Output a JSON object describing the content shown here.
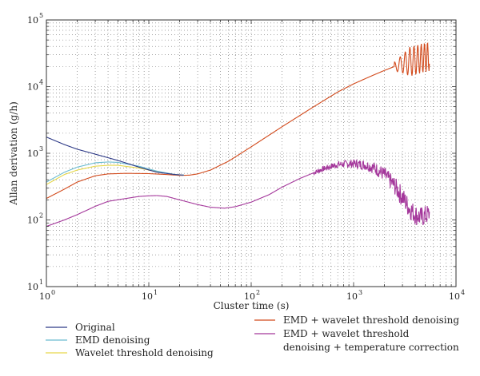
{
  "chart_data": {
    "type": "line",
    "title": "",
    "xlabel": "Cluster time (s)",
    "ylabel": "Allan derivation (g/h)",
    "x_scale": "log",
    "y_scale": "log",
    "xlim": [
      1,
      10000
    ],
    "ylim": [
      10,
      100000
    ],
    "grid": true,
    "legend_position": "bottom",
    "x_ticks": [
      {
        "value": 1,
        "base": "10",
        "exp": "0"
      },
      {
        "value": 10,
        "base": "10",
        "exp": "1"
      },
      {
        "value": 100,
        "base": "10",
        "exp": "2"
      },
      {
        "value": 1000,
        "base": "10",
        "exp": "3"
      },
      {
        "value": 10000,
        "base": "10",
        "exp": "4"
      }
    ],
    "y_ticks": [
      {
        "value": 10,
        "base": "10",
        "exp": "1"
      },
      {
        "value": 100,
        "base": "10",
        "exp": "2"
      },
      {
        "value": 1000,
        "base": "10",
        "exp": "3"
      },
      {
        "value": 10000,
        "base": "10",
        "exp": "4"
      },
      {
        "value": 100000,
        "base": "10",
        "exp": "5"
      }
    ],
    "series": [
      {
        "name": "Original",
        "color": "#2e3a87",
        "x": [
          1,
          1.5,
          2,
          3,
          5,
          8,
          12,
          18,
          22
        ],
        "y": [
          1750,
          1350,
          1150,
          970,
          780,
          620,
          520,
          480,
          470
        ]
      },
      {
        "name": "EMD denoising",
        "color": "#6bbcd1",
        "x": [
          1,
          1.5,
          2,
          3,
          4,
          5,
          8,
          12,
          18,
          22
        ],
        "y": [
          370,
          520,
          620,
          720,
          740,
          730,
          640,
          540,
          480,
          470
        ]
      },
      {
        "name": "Wavelet threshold denoising",
        "color": "#e6d84a",
        "x": [
          1,
          1.5,
          2,
          3,
          4,
          5,
          8,
          12,
          18,
          22
        ],
        "y": [
          340,
          480,
          560,
          640,
          660,
          660,
          600,
          530,
          480,
          470
        ]
      },
      {
        "name": "EMD + wavelet threshold denoising",
        "color": "#d24a1c",
        "x": [
          1,
          1.5,
          2,
          3,
          4,
          6,
          10,
          15,
          20,
          25,
          30,
          40,
          60,
          100,
          200,
          400,
          700,
          1000,
          1500,
          2000,
          2500,
          3000,
          4000,
          5000,
          5500
        ],
        "y": [
          210,
          290,
          370,
          460,
          490,
          500,
          495,
          480,
          465,
          470,
          490,
          560,
          760,
          1250,
          2500,
          4900,
          8300,
          11000,
          14500,
          17500,
          20000,
          22000,
          25000,
          27500,
          28500
        ],
        "oscillation": {
          "from": 2500,
          "to": 5600,
          "amplitude": 0.22
        }
      },
      {
        "name": "EMD + wavelet threshold denoising + temperature correction",
        "color": "#a4379b",
        "x": [
          1,
          1.5,
          2,
          3,
          4,
          6,
          8,
          10,
          12,
          15,
          20,
          30,
          40,
          55,
          70,
          100,
          150,
          200,
          300,
          500,
          700,
          1000,
          1300,
          1600,
          2000,
          2500,
          3000,
          3500,
          4000,
          4500,
          5000,
          5500
        ],
        "y": [
          80,
          100,
          120,
          160,
          190,
          210,
          225,
          230,
          232,
          225,
          200,
          170,
          155,
          150,
          158,
          185,
          240,
          310,
          420,
          580,
          680,
          700,
          670,
          600,
          480,
          330,
          220,
          150,
          120,
          110,
          115,
          125
        ],
        "noise": {
          "from": 400,
          "to": 5600,
          "amplitude": 0.12
        }
      }
    ]
  },
  "legend": {
    "items": [
      {
        "label": "Original",
        "color": "#2e3a87"
      },
      {
        "label": "EMD denoising",
        "color": "#6bbcd1"
      },
      {
        "label": "Wavelet threshold denoising",
        "color": "#e6d84a"
      },
      {
        "label": "EMD + wavelet threshold denoising",
        "color": "#d24a1c"
      },
      {
        "label_line1": "EMD + wavelet threshold",
        "label_line2": "denoising + temperature correction",
        "color": "#a4379b"
      }
    ]
  }
}
